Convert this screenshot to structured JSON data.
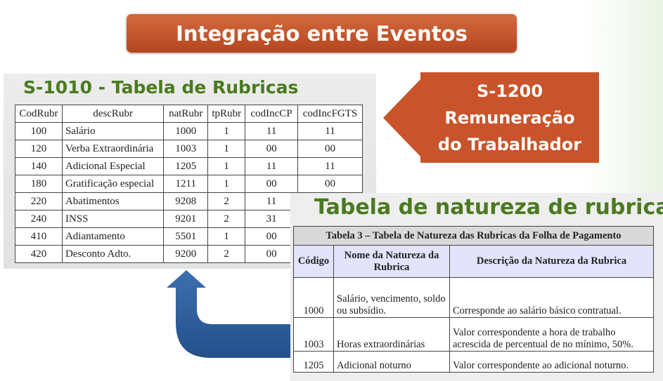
{
  "banner": {
    "title": "Integração entre Eventos"
  },
  "s1010": {
    "title": "S-1010 - Tabela de Rubricas",
    "columns": [
      "CodRubr",
      "descRubr",
      "natRubr",
      "tpRubr",
      "codIncCP",
      "codIncFGTS"
    ],
    "rows": [
      [
        "100",
        "Salário",
        "1000",
        "1",
        "11",
        "11"
      ],
      [
        "120",
        "Verba Extraordinária",
        "1003",
        "1",
        "00",
        "00"
      ],
      [
        "140",
        "Adicional Especial",
        "1205",
        "1",
        "11",
        "11"
      ],
      [
        "180",
        "Gratificação especial",
        "1211",
        "1",
        "00",
        "00"
      ],
      [
        "220",
        "Abatimentos",
        "9208",
        "2",
        "11",
        ""
      ],
      [
        "240",
        "INSS",
        "9201",
        "2",
        "31",
        ""
      ],
      [
        "410",
        "Adiantamento",
        "5501",
        "1",
        "00",
        ""
      ],
      [
        "420",
        "Desconto Adto.",
        "9200",
        "2",
        "00",
        ""
      ]
    ]
  },
  "s1200": {
    "line1": "S-1200",
    "line2": "Remuneração",
    "line3": "do Trabalhador",
    "color": "#c9532a"
  },
  "natureza": {
    "title": "Tabela de natureza de rubricas",
    "caption": "Tabela 3 – Tabela de Natureza das Rubricas da Folha de Pagamento",
    "columns": [
      "Código",
      "Nome da Natureza da Rubrica",
      "Descrição da Natureza da Rubrica"
    ],
    "rows": [
      [
        "1000",
        "Salário, vencimento, soldo ou subsídio.",
        "Corresponde ao salário básico contratual."
      ],
      [
        "1003",
        "Horas extraordinárias",
        "Valor correspondente a hora de trabalho acrescida de percentual de no mínimo, 50%."
      ],
      [
        "1205",
        "Adicional noturno",
        "Valor correspondente ao adicional noturno."
      ]
    ]
  },
  "colors": {
    "title_green": "#4a7a1f",
    "arrow_blue": "#2f5f9e"
  }
}
